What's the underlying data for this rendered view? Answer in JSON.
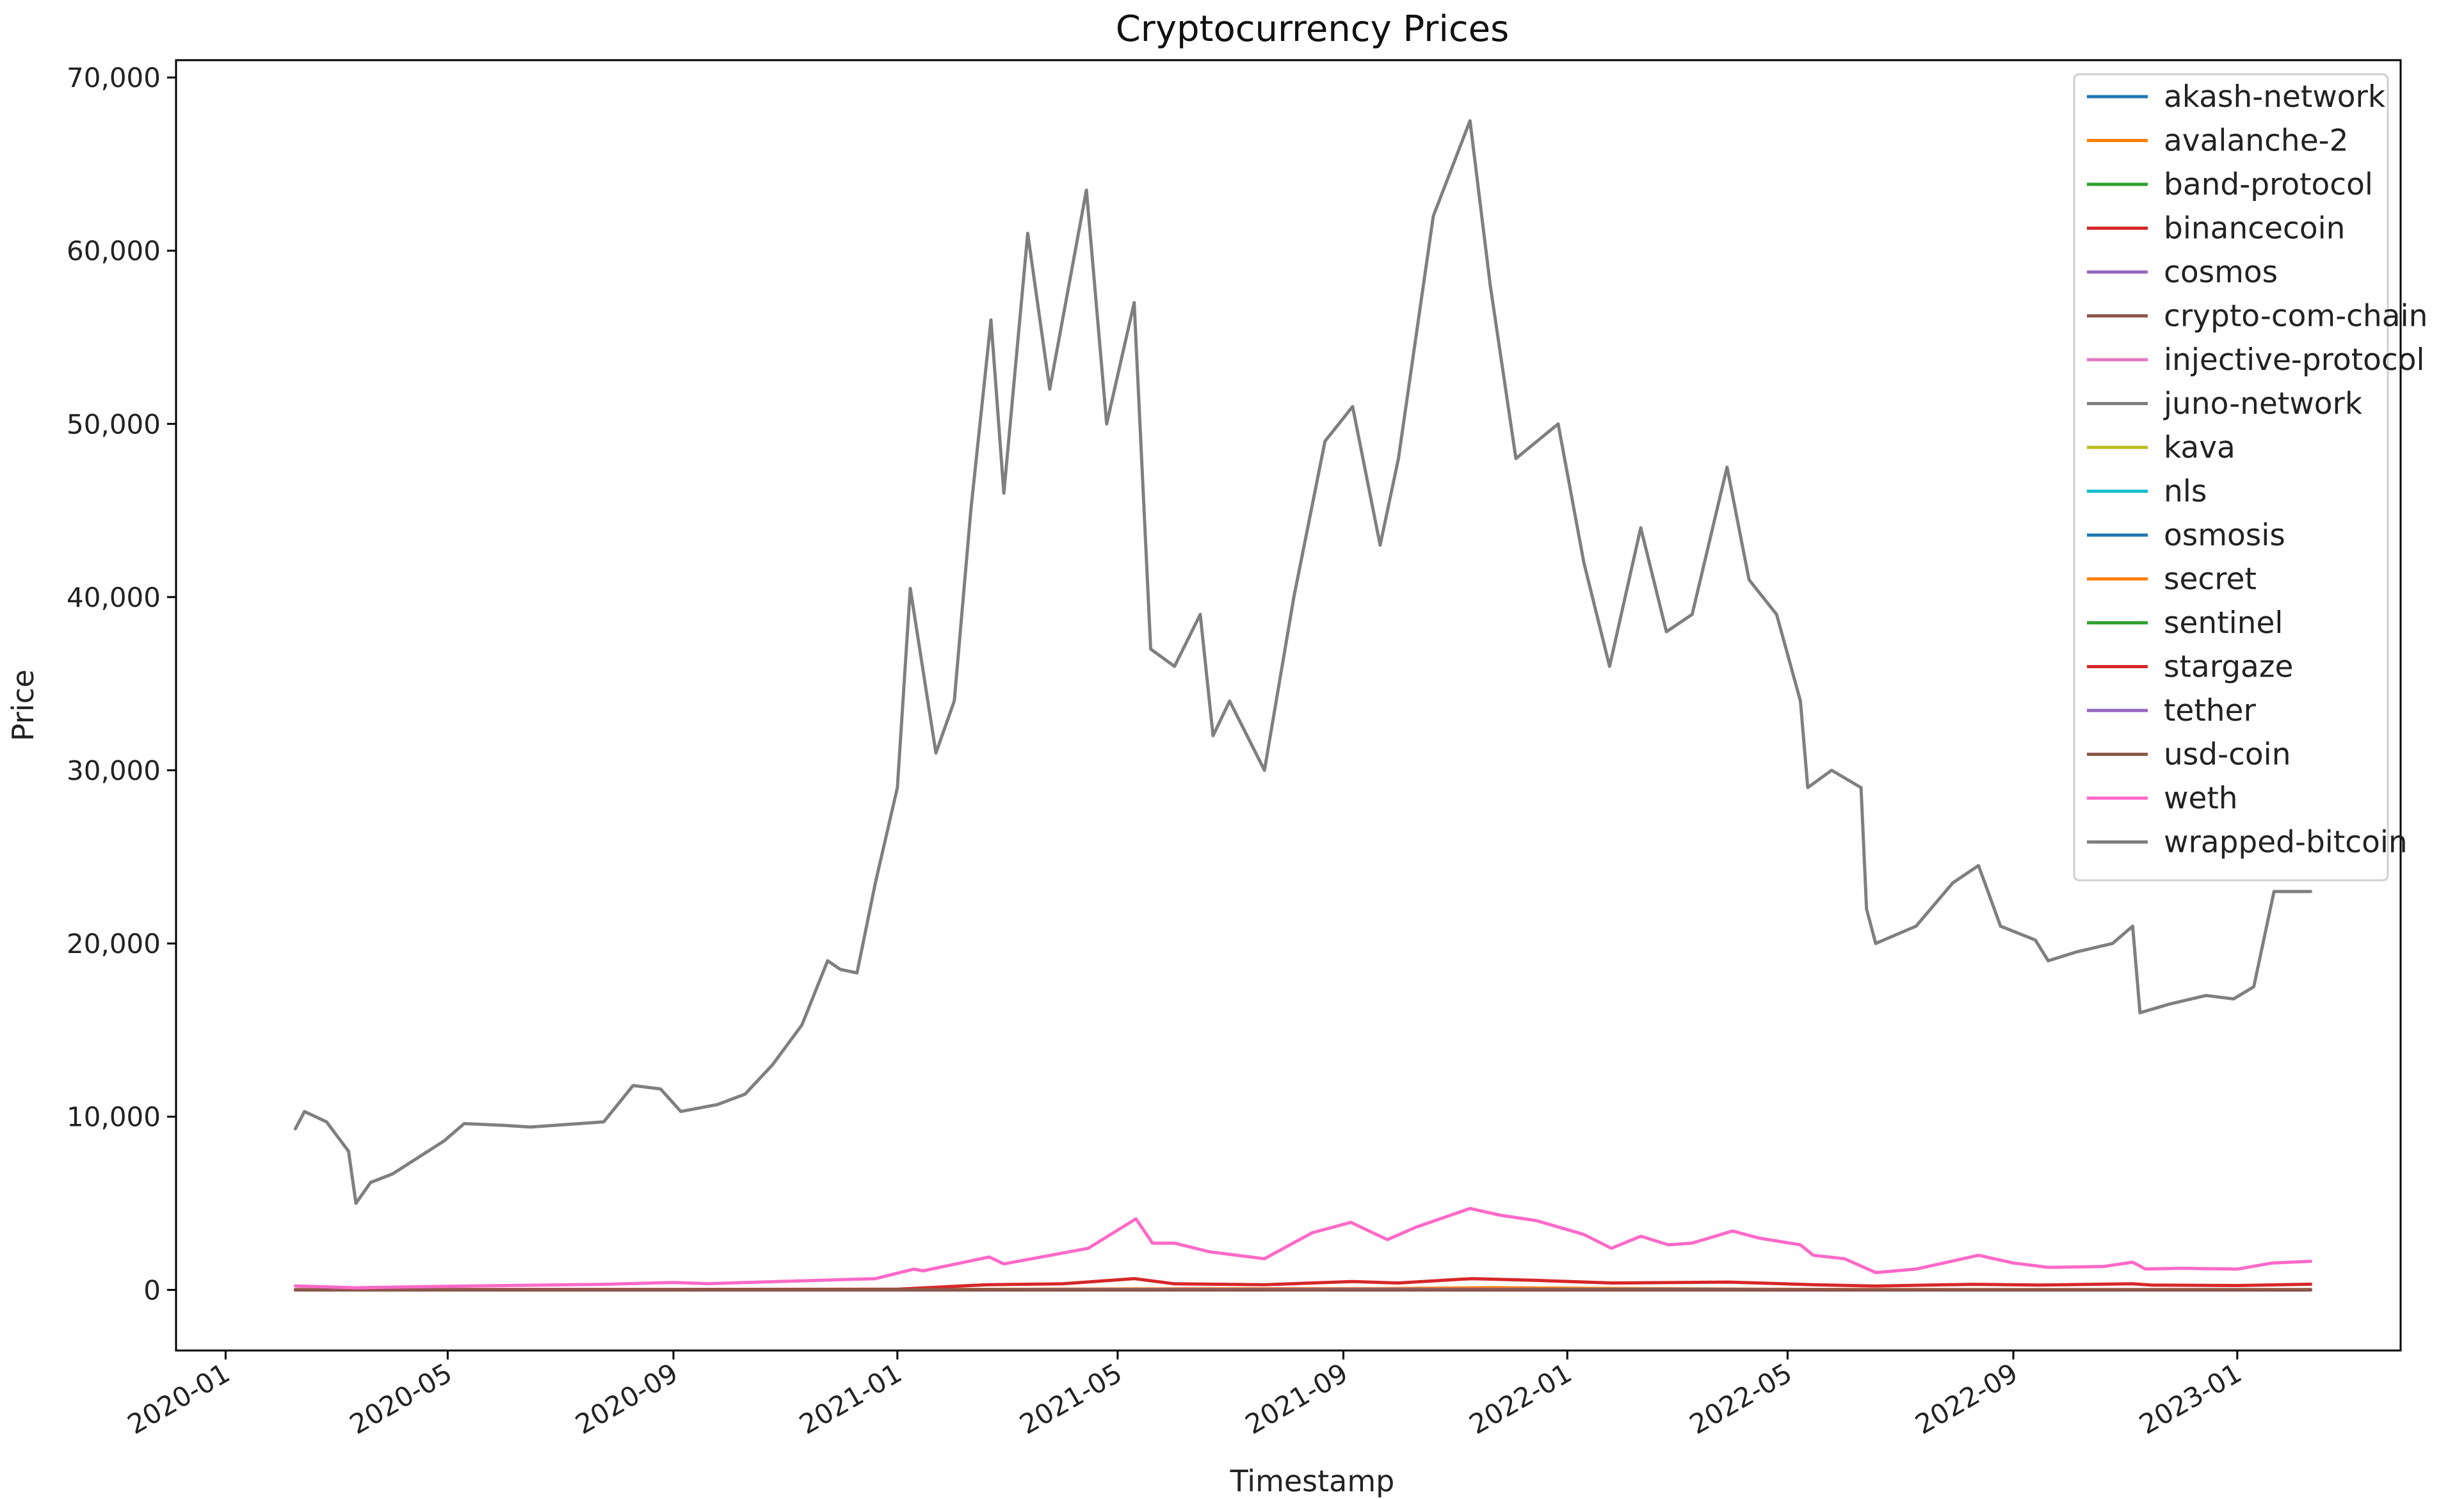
{
  "chart_data": {
    "type": "line",
    "title": "Cryptocurrency Prices",
    "xlabel": "Timestamp",
    "ylabel": "Price",
    "x_ticks": [
      "2020-01",
      "2020-05",
      "2020-09",
      "2021-01",
      "2021-05",
      "2021-09",
      "2022-01",
      "2022-05",
      "2022-09",
      "2023-01"
    ],
    "y_ticks": [
      "0",
      "10,000",
      "20,000",
      "30,000",
      "40,000",
      "50,000",
      "60,000",
      "70,000"
    ],
    "xlim": [
      "2019-12-05",
      "2023-03-31"
    ],
    "ylim": [
      -3500,
      71000
    ],
    "grid": false,
    "legend": "top-right",
    "series": [
      {
        "name": "akash-network",
        "color": "#1f77b4",
        "x": [
          "2020-02-08",
          "2023-02-10"
        ],
        "values": [
          0.5,
          0.3
        ]
      },
      {
        "name": "avalanche-2",
        "color": "#ff7f0e",
        "x": [
          "2020-02-08",
          "2020-09-22",
          "2020-12-01",
          "2021-02-10",
          "2021-05-10",
          "2021-09-20",
          "2021-11-21",
          "2022-01-10",
          "2022-05-15",
          "2022-09-01",
          "2023-02-10"
        ],
        "values": [
          0,
          5,
          4,
          30,
          60,
          70,
          130,
          90,
          30,
          18,
          20
        ]
      },
      {
        "name": "band-protocol",
        "color": "#2ca02c",
        "x": [
          "2020-02-08",
          "2020-08-15",
          "2021-04-15",
          "2022-01-01",
          "2023-02-10"
        ],
        "values": [
          0.5,
          15,
          18,
          5,
          2
        ]
      },
      {
        "name": "binancecoin",
        "color": "#d62728",
        "x": [
          "2020-02-08",
          "2020-09-01",
          "2021-01-01",
          "2021-02-19",
          "2021-04-01",
          "2021-05-10",
          "2021-06-01",
          "2021-07-20",
          "2021-09-06",
          "2021-10-01",
          "2021-11-10",
          "2021-12-15",
          "2022-01-25",
          "2022-03-30",
          "2022-05-15",
          "2022-06-18",
          "2022-08-10",
          "2022-09-15",
          "2022-11-05",
          "2022-11-15",
          "2023-01-01",
          "2023-02-10"
        ],
        "values": [
          20,
          25,
          40,
          300,
          350,
          650,
          350,
          300,
          480,
          400,
          650,
          550,
          400,
          450,
          300,
          220,
          320,
          280,
          350,
          280,
          250,
          330
        ]
      },
      {
        "name": "cosmos",
        "color": "#9467bd",
        "x": [
          "2020-02-08",
          "2021-01-01",
          "2021-09-20",
          "2022-01-15",
          "2022-06-01",
          "2023-02-10"
        ],
        "values": [
          4,
          6,
          40,
          30,
          10,
          13
        ]
      },
      {
        "name": "crypto-com-chain",
        "color": "#8c564b",
        "x": [
          "2020-02-08",
          "2021-11-24",
          "2023-02-10"
        ],
        "values": [
          0.04,
          0.8,
          0.08
        ]
      },
      {
        "name": "injective-protocol",
        "color": "#e377c2",
        "x": [
          "2020-10-20",
          "2021-02-20",
          "2021-04-20",
          "2021-11-01",
          "2022-04-01",
          "2023-02-10"
        ],
        "values": [
          1,
          10,
          20,
          20,
          5,
          3
        ]
      },
      {
        "name": "juno-network",
        "color": "#7f7f7f",
        "x": [
          "2021-10-01",
          "2022-03-10",
          "2022-05-12",
          "2022-09-01",
          "2023-02-10"
        ],
        "values": [
          10,
          40,
          3,
          1,
          1
        ]
      },
      {
        "name": "kava",
        "color": "#bcbd22",
        "x": [
          "2020-02-08",
          "2021-04-10",
          "2021-09-01",
          "2022-06-01",
          "2023-02-10"
        ],
        "values": [
          1,
          5,
          6,
          2,
          1
        ]
      },
      {
        "name": "nls",
        "color": "#17becf",
        "x": [
          "2022-09-01",
          "2023-02-10"
        ],
        "values": [
          0.3,
          0.2
        ]
      },
      {
        "name": "osmosis",
        "color": "#1f77b4",
        "x": [
          "2021-07-01",
          "2022-03-01",
          "2023-02-10"
        ],
        "values": [
          4,
          10,
          1
        ]
      },
      {
        "name": "secret",
        "color": "#ff7f0e",
        "x": [
          "2020-09-01",
          "2021-12-01",
          "2022-06-01",
          "2023-02-10"
        ],
        "values": [
          0.5,
          9,
          1.5,
          1
        ]
      },
      {
        "name": "sentinel",
        "color": "#2ca02c",
        "x": [
          "2020-09-01",
          "2021-10-01",
          "2023-02-10"
        ],
        "values": [
          0.01,
          0.05,
          0.001
        ]
      },
      {
        "name": "stargaze",
        "color": "#d62728",
        "x": [
          "2021-10-30",
          "2022-02-01",
          "2023-02-10"
        ],
        "values": [
          0.1,
          0.2,
          0.02
        ]
      },
      {
        "name": "tether",
        "color": "#9467bd",
        "x": [
          "2020-02-08",
          "2023-02-10"
        ],
        "values": [
          1,
          1
        ]
      },
      {
        "name": "usd-coin",
        "color": "#8c564b",
        "x": [
          "2020-02-08",
          "2023-02-10"
        ],
        "values": [
          1,
          1
        ]
      },
      {
        "name": "weth",
        "color": "#ff69c8",
        "x": [
          "2020-02-08",
          "2020-03-12",
          "2020-05-01",
          "2020-07-25",
          "2020-09-01",
          "2020-09-20",
          "2020-12-20",
          "2021-01-10",
          "2021-01-15",
          "2021-02-20",
          "2021-02-28",
          "2021-04-15",
          "2021-05-11",
          "2021-05-20",
          "2021-06-01",
          "2021-06-20",
          "2021-07-20",
          "2021-08-15",
          "2021-09-05",
          "2021-09-25",
          "2021-10-10",
          "2021-11-09",
          "2021-11-26",
          "2021-12-15",
          "2022-01-10",
          "2022-01-25",
          "2022-02-10",
          "2022-02-25",
          "2022-03-10",
          "2022-04-01",
          "2022-04-15",
          "2022-05-08",
          "2022-05-15",
          "2022-06-01",
          "2022-06-18",
          "2022-07-10",
          "2022-08-13",
          "2022-09-01",
          "2022-09-20",
          "2022-10-20",
          "2022-11-05",
          "2022-11-12",
          "2022-12-01",
          "2023-01-01",
          "2023-01-20",
          "2023-02-10"
        ],
        "values": [
          230,
          120,
          210,
          320,
          430,
          360,
          650,
          1200,
          1100,
          1900,
          1500,
          2400,
          4100,
          2700,
          2700,
          2200,
          1800,
          3300,
          3900,
          2900,
          3600,
          4700,
          4300,
          4000,
          3200,
          2400,
          3100,
          2600,
          2700,
          3400,
          3000,
          2600,
          2000,
          1800,
          1000,
          1200,
          2000,
          1550,
          1300,
          1350,
          1600,
          1200,
          1250,
          1200,
          1550,
          1650
        ]
      },
      {
        "name": "wrapped-bitcoin",
        "color": "#7f7f7f",
        "x": [
          "2020-02-08",
          "2020-02-13",
          "2020-02-25",
          "2020-03-08",
          "2020-03-12",
          "2020-03-20",
          "2020-04-01",
          "2020-04-29",
          "2020-05-10",
          "2020-06-01",
          "2020-06-15",
          "2020-07-25",
          "2020-08-10",
          "2020-08-25",
          "2020-09-05",
          "2020-09-25",
          "2020-10-10",
          "2020-10-25",
          "2020-11-10",
          "2020-11-24",
          "2020-12-01",
          "2020-12-10",
          "2020-12-20",
          "2021-01-01",
          "2021-01-08",
          "2021-01-22",
          "2021-02-01",
          "2021-02-10",
          "2021-02-21",
          "2021-02-28",
          "2021-03-13",
          "2021-03-25",
          "2021-04-14",
          "2021-04-25",
          "2021-05-10",
          "2021-05-19",
          "2021-06-01",
          "2021-06-15",
          "2021-06-22",
          "2021-07-01",
          "2021-07-20",
          "2021-08-05",
          "2021-08-22",
          "2021-09-06",
          "2021-09-21",
          "2021-10-01",
          "2021-10-20",
          "2021-11-09",
          "2021-11-20",
          "2021-12-04",
          "2021-12-27",
          "2022-01-10",
          "2022-01-24",
          "2022-02-10",
          "2022-02-24",
          "2022-03-10",
          "2022-03-29",
          "2022-04-10",
          "2022-04-25",
          "2022-05-08",
          "2022-05-12",
          "2022-05-25",
          "2022-06-10",
          "2022-06-13",
          "2022-06-18",
          "2022-07-10",
          "2022-07-30",
          "2022-08-13",
          "2022-08-25",
          "2022-09-13",
          "2022-09-20",
          "2022-10-05",
          "2022-10-25",
          "2022-11-05",
          "2022-11-09",
          "2022-11-25",
          "2022-12-15",
          "2022-12-30",
          "2023-01-10",
          "2023-01-21",
          "2023-02-10"
        ],
        "values": [
          9300,
          10300,
          9700,
          8000,
          5000,
          6200,
          6700,
          8600,
          9600,
          9500,
          9400,
          9700,
          11800,
          11600,
          10300,
          10700,
          11300,
          13000,
          15300,
          19000,
          18500,
          18300,
          23500,
          29000,
          40500,
          31000,
          34000,
          45000,
          56000,
          46000,
          61000,
          52000,
          63500,
          50000,
          57000,
          37000,
          36000,
          39000,
          32000,
          34000,
          30000,
          40000,
          49000,
          51000,
          43000,
          48000,
          62000,
          67500,
          58000,
          48000,
          50000,
          42000,
          36000,
          44000,
          38000,
          39000,
          47500,
          41000,
          39000,
          34000,
          29000,
          30000,
          29000,
          22000,
          20000,
          21000,
          23500,
          24500,
          21000,
          20200,
          19000,
          19500,
          20000,
          21000,
          16000,
          16500,
          17000,
          16800,
          17500,
          23000,
          23000
        ]
      }
    ]
  }
}
